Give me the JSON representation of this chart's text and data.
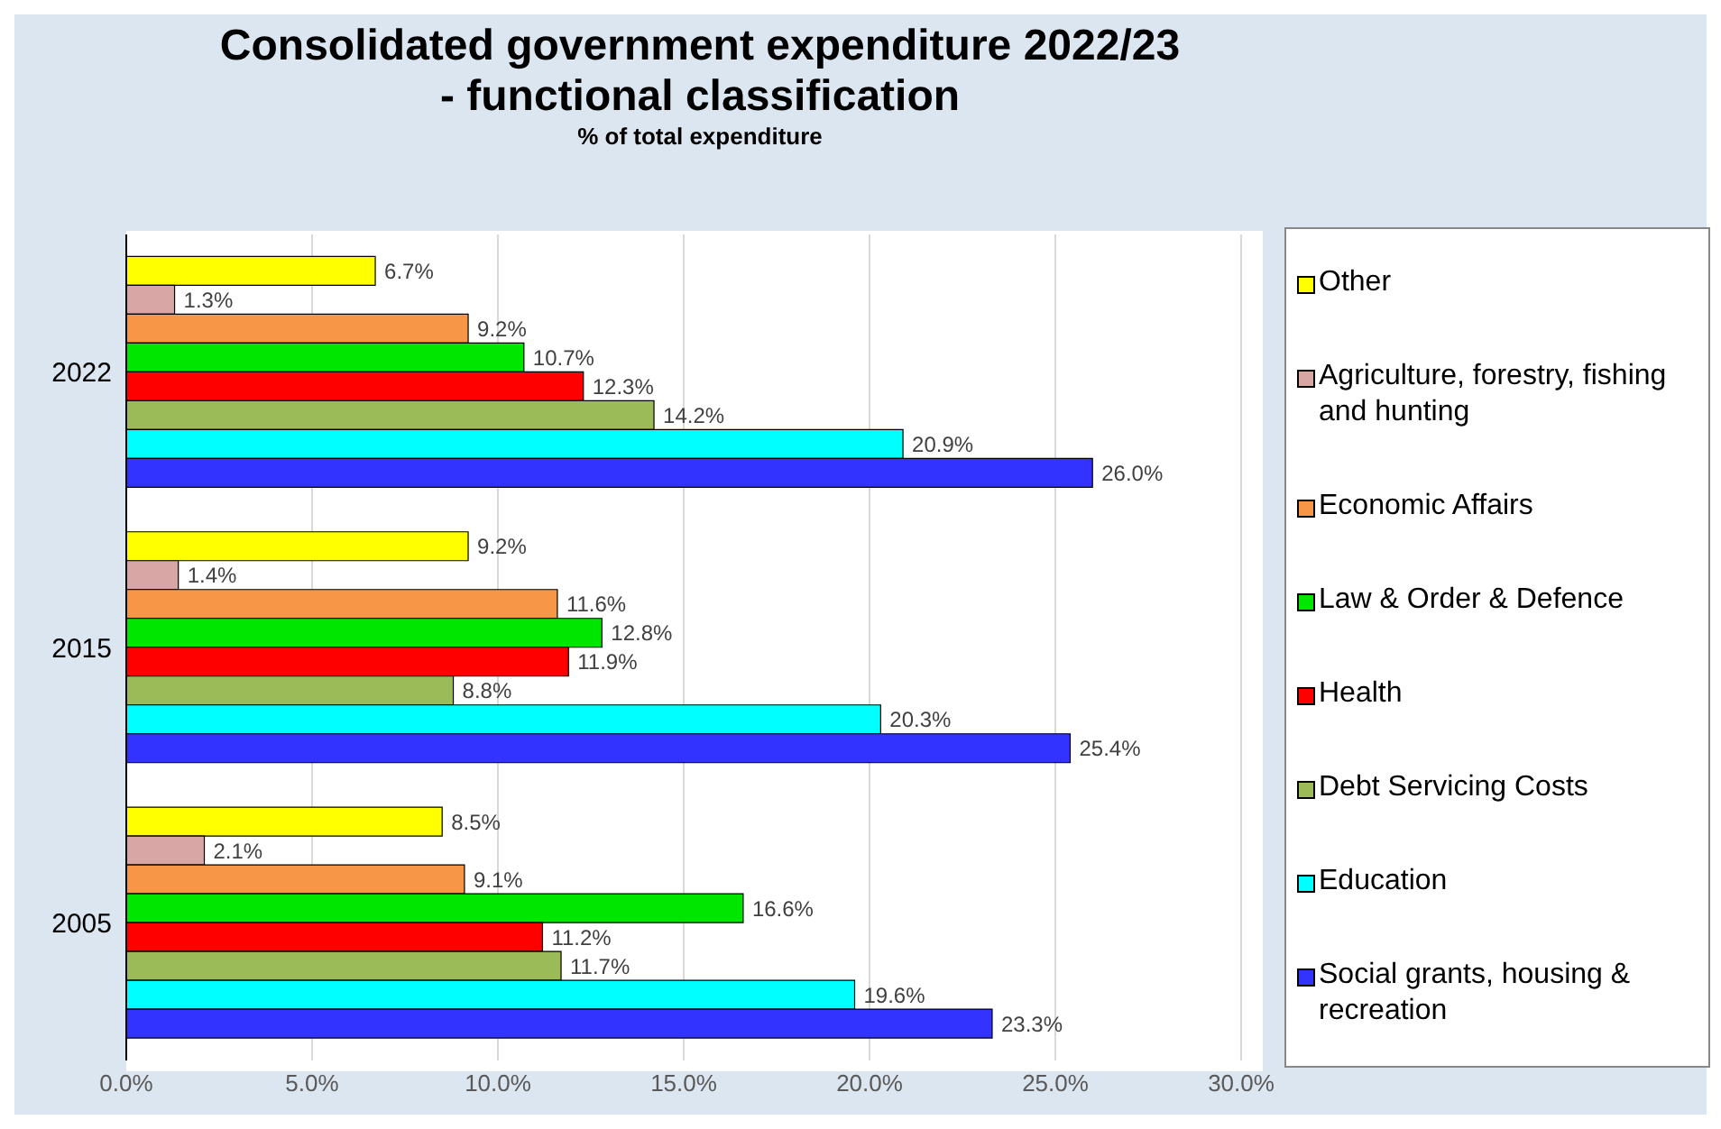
{
  "chart_data": {
    "type": "bar",
    "orientation": "horizontal",
    "title": "Consolidated government expenditure 2022/23\n- functional classification",
    "subtitle": "% of total expenditure",
    "categories": [
      "2022",
      "2015",
      "2005"
    ],
    "series": [
      {
        "name": "Other",
        "color": "#ffff00",
        "values": [
          6.7,
          9.2,
          8.5
        ],
        "value_labels": [
          "6.7%",
          "9.2%",
          "8.5%"
        ]
      },
      {
        "name": "Agriculture, forestry, fishing and hunting",
        "color": "#d8a7a5",
        "values": [
          1.3,
          1.4,
          2.1
        ],
        "value_labels": [
          "1.3%",
          "1.4%",
          "2.1%"
        ]
      },
      {
        "name": "Economic Affairs",
        "color": "#f79646",
        "values": [
          9.2,
          11.6,
          9.1
        ],
        "value_labels": [
          "9.2%",
          "11.6%",
          "9.1%"
        ]
      },
      {
        "name": "Law & Order & Defence",
        "color": "#00e600",
        "values": [
          10.7,
          12.8,
          16.6
        ],
        "value_labels": [
          "10.7%",
          "12.8%",
          "16.6%"
        ]
      },
      {
        "name": "Health",
        "color": "#ff0000",
        "values": [
          12.3,
          11.9,
          11.2
        ],
        "value_labels": [
          "12.3%",
          "11.9%",
          "11.2%"
        ]
      },
      {
        "name": "Debt Servicing Costs",
        "color": "#9bbb59",
        "values": [
          14.2,
          8.8,
          11.7
        ],
        "value_labels": [
          "14.2%",
          "8.8%",
          "11.7%"
        ]
      },
      {
        "name": "Education",
        "color": "#00ffff",
        "values": [
          20.9,
          20.3,
          19.6
        ],
        "value_labels": [
          "20.9%",
          "20.3%",
          "19.6%"
        ]
      },
      {
        "name": "Social grants, housing & recreation",
        "color": "#3333ff",
        "values": [
          26.0,
          25.4,
          23.3
        ],
        "value_labels": [
          "26.0%",
          "25.4%",
          "23.3%"
        ]
      }
    ],
    "xlim": [
      0,
      30
    ],
    "xticks": [
      {
        "value": 0,
        "label": "0.0%"
      },
      {
        "value": 5,
        "label": "5.0%"
      },
      {
        "value": 10,
        "label": "10.0%"
      },
      {
        "value": 15,
        "label": "15.0%"
      },
      {
        "value": 20,
        "label": "20.0%"
      },
      {
        "value": 25,
        "label": "25.0%"
      },
      {
        "value": 30,
        "label": "30.0%"
      }
    ],
    "grid": "x",
    "legend": "right"
  }
}
